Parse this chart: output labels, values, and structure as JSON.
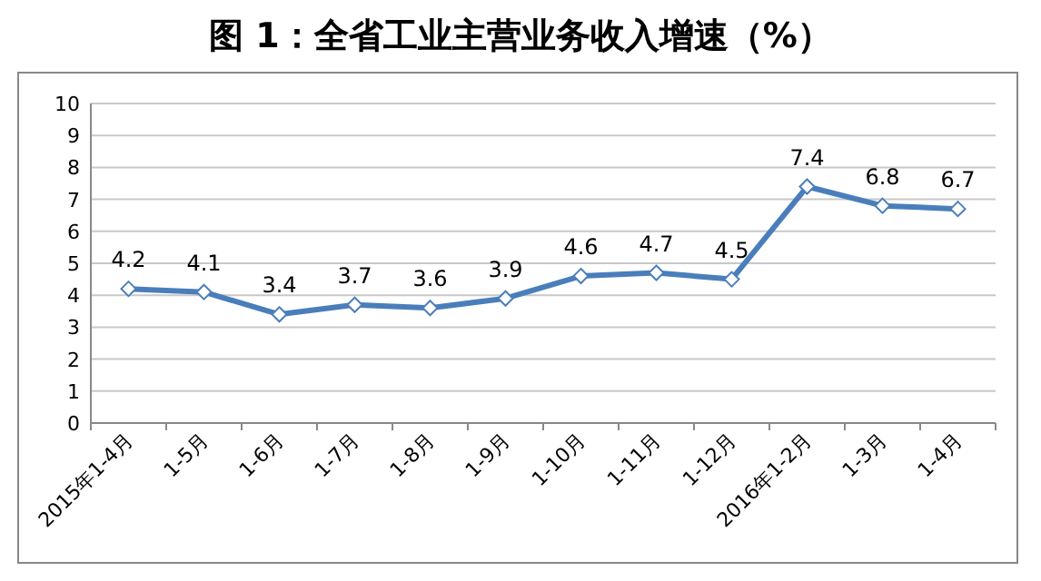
{
  "chart_data": {
    "type": "line",
    "title": "图 1：全省工业主营业务收入增速（%）",
    "categories": [
      "2015年1-4月",
      "1-5月",
      "1-6月",
      "1-7月",
      "1-8月",
      "1-9月",
      "1-10月",
      "1-11月",
      "1-12月",
      "2016年1-2月",
      "1-3月",
      "1-4月"
    ],
    "values": [
      4.2,
      4.1,
      3.4,
      3.7,
      3.6,
      3.9,
      4.6,
      4.7,
      4.5,
      7.4,
      6.8,
      6.7
    ],
    "color": "#4a7ebb",
    "ylim": [
      0,
      10
    ],
    "yticks": [
      0,
      1,
      2,
      3,
      4,
      5,
      6,
      7,
      8,
      9,
      10
    ],
    "grid": "y",
    "marker": "diamond",
    "line_style": "solid",
    "data_labels": true
  }
}
